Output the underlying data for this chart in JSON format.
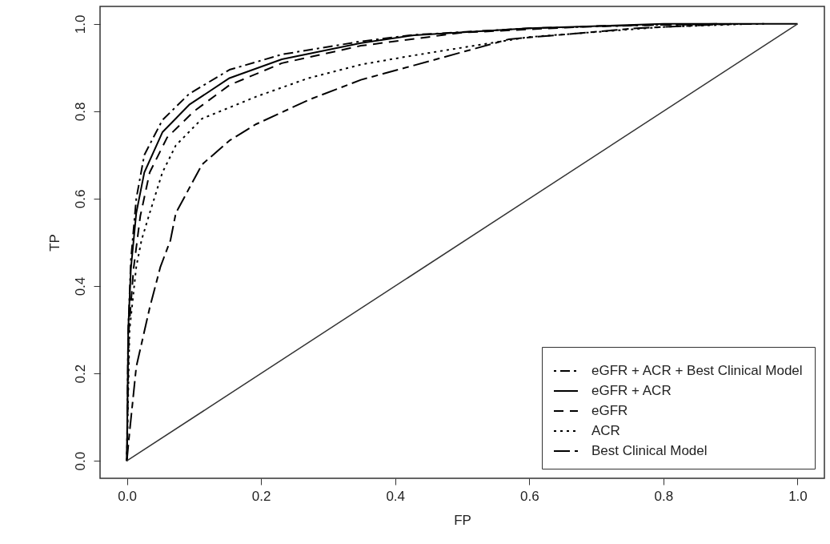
{
  "chart_data": {
    "type": "line",
    "xlabel": "FP",
    "ylabel": "TP",
    "xlim": [
      -0.04,
      1.04
    ],
    "ylim": [
      -0.04,
      1.04
    ],
    "xticks": [
      {
        "value": 0,
        "label": "0.0"
      },
      {
        "value": 0.2,
        "label": "0.2"
      },
      {
        "value": 0.4,
        "label": "0.4"
      },
      {
        "value": 0.6,
        "label": "0.6"
      },
      {
        "value": 0.8,
        "label": "0.8"
      },
      {
        "value": 1,
        "label": "1.0"
      }
    ],
    "yticks": [
      {
        "value": 0,
        "label": "0.0"
      },
      {
        "value": 0.2,
        "label": "0.2"
      },
      {
        "value": 0.4,
        "label": "0.4"
      },
      {
        "value": 0.6,
        "label": "0.6"
      },
      {
        "value": 0.8,
        "label": "0.8"
      },
      {
        "value": 1,
        "label": "1.0"
      }
    ],
    "grid": false,
    "legend": "bottom right",
    "marker": "none",
    "series": [
      {
        "name": "eGFR + ACR + Best Clinical Model",
        "color": "#000000",
        "line_style": "dashdot",
        "x": [
          0,
          0.002,
          0.006,
          0.014,
          0.026,
          0.053,
          0.093,
          0.153,
          0.231,
          0.349,
          0.428,
          0.6,
          0.8,
          0.95
        ],
        "values": [
          0,
          0.3,
          0.46,
          0.6,
          0.7,
          0.78,
          0.84,
          0.895,
          0.93,
          0.96,
          0.975,
          0.99,
          0.998,
          1
        ]
      },
      {
        "name": "eGFR + ACR",
        "color": "#000000",
        "line_style": "solid",
        "x": [
          0,
          0.002,
          0.006,
          0.014,
          0.026,
          0.053,
          0.093,
          0.153,
          0.231,
          0.349,
          0.428,
          0.6,
          0.8,
          1
        ],
        "values": [
          0,
          0.3,
          0.44,
          0.567,
          0.66,
          0.752,
          0.815,
          0.876,
          0.919,
          0.956,
          0.974,
          0.99,
          1,
          1
        ]
      },
      {
        "name": "eGFR",
        "color": "#000000",
        "line_style": "dashed",
        "x": [
          0,
          0.003,
          0.01,
          0.02,
          0.034,
          0.06,
          0.1,
          0.153,
          0.231,
          0.349,
          0.5,
          0.7,
          0.88
        ],
        "values": [
          0,
          0.3,
          0.44,
          0.56,
          0.66,
          0.74,
          0.8,
          0.86,
          0.91,
          0.95,
          0.98,
          0.995,
          1
        ]
      },
      {
        "name": "ACR",
        "color": "#000000",
        "line_style": "dotted",
        "x": [
          0,
          0.004,
          0.014,
          0.022,
          0.034,
          0.053,
          0.073,
          0.112,
          0.192,
          0.271,
          0.349,
          0.428,
          0.6,
          0.8,
          0.93
        ],
        "values": [
          0,
          0.3,
          0.444,
          0.506,
          0.567,
          0.66,
          0.722,
          0.783,
          0.833,
          0.876,
          0.907,
          0.928,
          0.97,
          0.993,
          1
        ]
      },
      {
        "name": "Best Clinical Model",
        "color": "#000000",
        "line_style": "longdash",
        "x": [
          0,
          0.003,
          0.014,
          0.034,
          0.05,
          0.065,
          0.073,
          0.112,
          0.153,
          0.192,
          0.271,
          0.349,
          0.428,
          0.57,
          0.76,
          0.9
        ],
        "values": [
          0,
          0.05,
          0.215,
          0.35,
          0.444,
          0.505,
          0.567,
          0.678,
          0.733,
          0.77,
          0.826,
          0.872,
          0.905,
          0.965,
          0.99,
          1
        ]
      },
      {
        "type": "line",
        "color": "#333333",
        "x": [
          0,
          1
        ],
        "values": [
          0,
          1
        ]
      }
    ]
  }
}
